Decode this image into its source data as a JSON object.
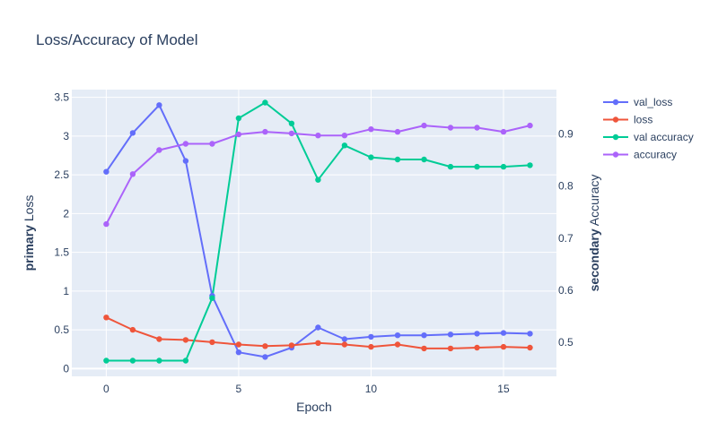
{
  "chart_data": {
    "type": "line",
    "title": "Loss/Accuracy of Model",
    "xlabel": "Epoch",
    "ylabel_primary": {
      "bold": "primary",
      "rest": " Loss"
    },
    "ylabel_secondary": {
      "bold": "secondary",
      "rest": " Accuracy"
    },
    "x": [
      0,
      1,
      2,
      3,
      4,
      5,
      6,
      7,
      8,
      9,
      10,
      11,
      12,
      13,
      14,
      15,
      16
    ],
    "xlim": [
      -1.3,
      17
    ],
    "ylim_primary": [
      -0.1,
      3.6
    ],
    "ylim_secondary": [
      0.435,
      0.985
    ],
    "xticks": [
      0,
      5,
      10,
      15
    ],
    "yticks_primary": [
      0,
      0.5,
      1,
      1.5,
      2,
      2.5,
      3,
      3.5
    ],
    "yticks_secondary": [
      0.5,
      0.6,
      0.7,
      0.8,
      0.9
    ],
    "grid": true,
    "legend_position": "top-right",
    "series": [
      {
        "name": "val_loss",
        "axis": "primary",
        "color": "#636efa",
        "values": [
          2.54,
          3.04,
          3.4,
          2.68,
          0.94,
          0.21,
          0.15,
          0.27,
          0.53,
          0.38,
          0.41,
          0.43,
          0.43,
          0.44,
          0.45,
          0.46,
          0.45
        ]
      },
      {
        "name": "loss",
        "axis": "primary",
        "color": "#ef553b",
        "values": [
          0.66,
          0.5,
          0.38,
          0.37,
          0.34,
          0.31,
          0.29,
          0.3,
          0.33,
          0.31,
          0.28,
          0.31,
          0.26,
          0.26,
          0.27,
          0.28,
          0.27
        ]
      },
      {
        "name": "val accuracy",
        "axis": "secondary",
        "color": "#00cc96",
        "values": [
          0.465,
          0.465,
          0.465,
          0.465,
          0.585,
          0.93,
          0.96,
          0.92,
          0.812,
          0.878,
          0.855,
          0.851,
          0.851,
          0.837,
          0.837,
          0.837,
          0.84
        ]
      },
      {
        "name": "accuracy",
        "axis": "secondary",
        "color": "#ab63fa",
        "values": [
          0.727,
          0.823,
          0.869,
          0.881,
          0.881,
          0.899,
          0.904,
          0.901,
          0.897,
          0.897,
          0.909,
          0.904,
          0.916,
          0.912,
          0.912,
          0.904,
          0.916
        ]
      }
    ]
  }
}
